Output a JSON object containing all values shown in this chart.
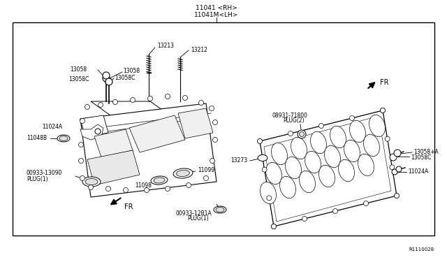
{
  "bg_color": "#ffffff",
  "line_color": "#000000",
  "title_lines": [
    "11041 <RH>",
    "11041M<LH>"
  ],
  "diagram_id": "R1110028",
  "fs_label": 5.5,
  "fs_title": 6.5
}
